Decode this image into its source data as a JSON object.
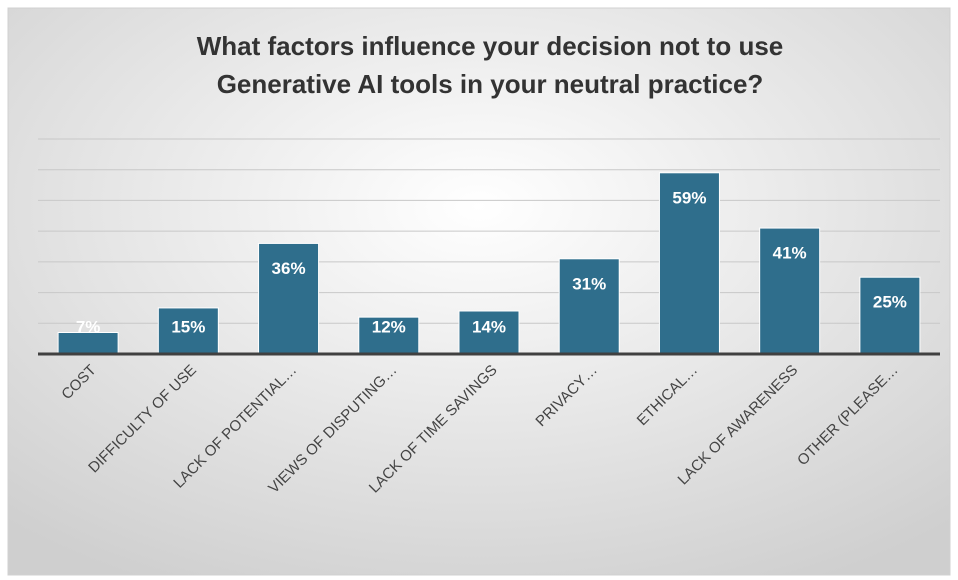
{
  "chart_data": {
    "type": "bar",
    "title": [
      "What factors influence your decision not to use",
      "Generative AI tools in your neutral practice?"
    ],
    "categories": [
      "COST",
      "DIFFICULTY OF USE",
      "LACK OF POTENTIAL…",
      "VIEWS OF DISPUTING…",
      "LACK OF TIME SAVINGS",
      "PRIVACY…",
      "ETHICAL…",
      "LACK OF AWARENESS",
      "OTHER (PLEASE…"
    ],
    "values": [
      7,
      15,
      36,
      12,
      14,
      31,
      59,
      41,
      25
    ],
    "value_labels": [
      "7%",
      "15%",
      "36%",
      "12%",
      "14%",
      "31%",
      "59%",
      "41%",
      "25%"
    ],
    "color": "#2f6e8c",
    "ylim": [
      0,
      70
    ],
    "yticks": [
      0,
      10,
      20,
      30,
      40,
      50,
      60,
      70
    ],
    "grid": true
  }
}
